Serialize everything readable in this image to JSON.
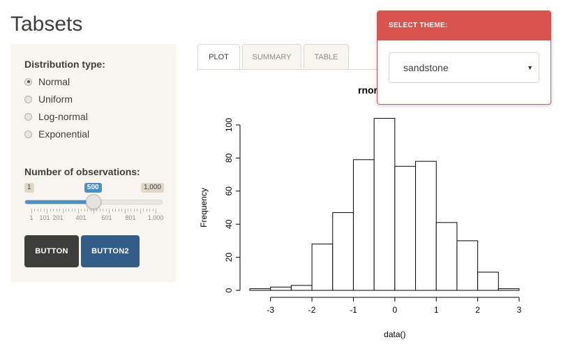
{
  "page": {
    "title": "Tabsets"
  },
  "sidebar": {
    "distribution_label": "Distribution type:",
    "distributions": [
      {
        "label": "Normal",
        "checked": true
      },
      {
        "label": "Uniform",
        "checked": false
      },
      {
        "label": "Log-normal",
        "checked": false
      },
      {
        "label": "Exponential",
        "checked": false
      }
    ],
    "observations_label": "Number of observations:",
    "slider": {
      "min": 1,
      "max": 1000,
      "value": 500,
      "min_label": "1",
      "max_label": "1,000",
      "value_label": "500",
      "tick_labels": [
        "1",
        "101",
        "201",
        "401",
        "601",
        "801",
        "1,000"
      ]
    },
    "button1_label": "BUTTON",
    "button2_label": "BUTTON2"
  },
  "tabs": [
    {
      "label": "PLOT",
      "active": true
    },
    {
      "label": "SUMMARY",
      "active": false
    },
    {
      "label": "TABLE",
      "active": false
    }
  ],
  "theme_selector": {
    "header": "SELECT THEME:",
    "selected": "sandstone"
  },
  "chart_data": {
    "type": "bar",
    "title": "rnor",
    "xlabel": "data()",
    "ylabel": "Frequency",
    "xlim": [
      -3.5,
      3
    ],
    "ylim": [
      0,
      105
    ],
    "x_ticks": [
      -3,
      -2,
      -1,
      0,
      1,
      2,
      3
    ],
    "y_ticks": [
      0,
      20,
      40,
      60,
      80,
      100
    ],
    "bins": [
      {
        "x0": -3.5,
        "x1": -3.0,
        "count": 1
      },
      {
        "x0": -3.0,
        "x1": -2.5,
        "count": 2
      },
      {
        "x0": -2.5,
        "x1": -2.0,
        "count": 3
      },
      {
        "x0": -2.0,
        "x1": -1.5,
        "count": 28
      },
      {
        "x0": -1.5,
        "x1": -1.0,
        "count": 47
      },
      {
        "x0": -1.0,
        "x1": -0.5,
        "count": 79
      },
      {
        "x0": -0.5,
        "x1": 0.0,
        "count": 104
      },
      {
        "x0": 0.0,
        "x1": 0.5,
        "count": 75
      },
      {
        "x0": 0.5,
        "x1": 1.0,
        "count": 78
      },
      {
        "x0": 1.0,
        "x1": 1.5,
        "count": 41
      },
      {
        "x0": 1.5,
        "x1": 2.0,
        "count": 30
      },
      {
        "x0": 2.0,
        "x1": 2.5,
        "count": 11
      },
      {
        "x0": 2.5,
        "x1": 3.0,
        "count": 1
      }
    ],
    "colors": {
      "bar_fill": "#ffffff",
      "bar_stroke": "#000000"
    }
  }
}
